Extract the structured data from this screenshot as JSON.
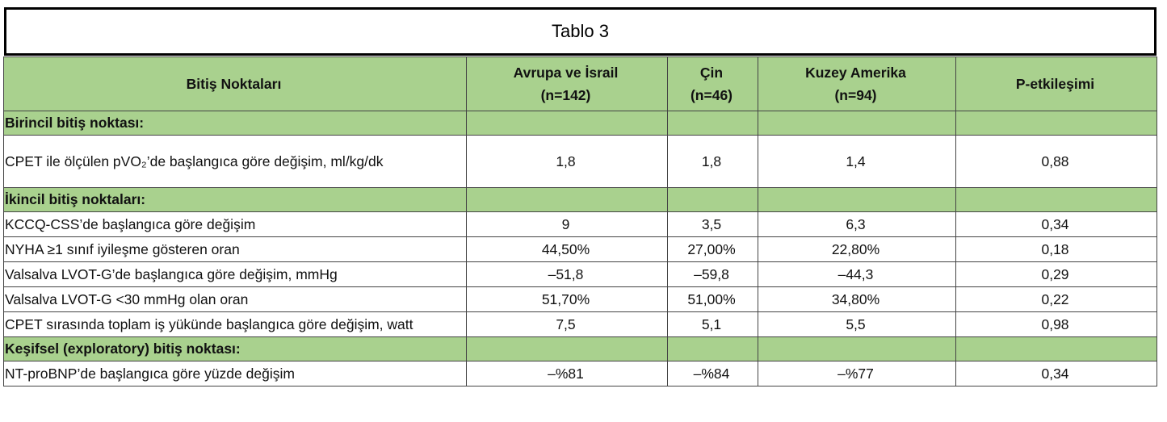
{
  "title": "Tablo 3",
  "table": {
    "header": [
      "Bitiş Noktaları",
      [
        "Avrupa ve İsrail",
        "(n=142)"
      ],
      [
        "Çin",
        "(n=46)"
      ],
      [
        "Kuzey Amerika",
        "(n=94)"
      ],
      "P-etkileşimi"
    ],
    "rows": [
      [
        "Birincil bitiş noktası:"
      ],
      [
        "CPET ile ölçülen pVO₂’de başlangıca göre değişim, ml/kg/dk",
        "1,8",
        "1,8",
        "1,4",
        "0,88"
      ],
      [
        "İkincil bitiş noktaları:"
      ],
      [
        "KCCQ-CSS’de başlangıca göre değişim",
        "9",
        "3,5",
        "6,3",
        "0,34"
      ],
      [
        "NYHA ≥1 sınıf iyileşme gösteren oran",
        "44,50%",
        "27,00%",
        "22,80%",
        "0,18"
      ],
      [
        "Valsalva LVOT-G’de başlangıca göre değişim, mmHg",
        "–51,8",
        "–59,8",
        "–44,3",
        "0,29"
      ],
      [
        "Valsalva LVOT-G <30 mmHg olan oran",
        "51,70%",
        "51,00%",
        "34,80%",
        "0,22"
      ],
      [
        "CPET sırasında toplam iş yükünde başlangıca göre değişim, watt",
        "7,5",
        "5,1",
        "5,5",
        "0,98"
      ],
      [
        "Keşifsel (exploratory) bitiş noktası:"
      ],
      [
        "NT-proBNP’de başlangıca göre yüzde değişim",
        "–%81",
        "–%84",
        "–%77",
        "0,34"
      ]
    ]
  }
}
